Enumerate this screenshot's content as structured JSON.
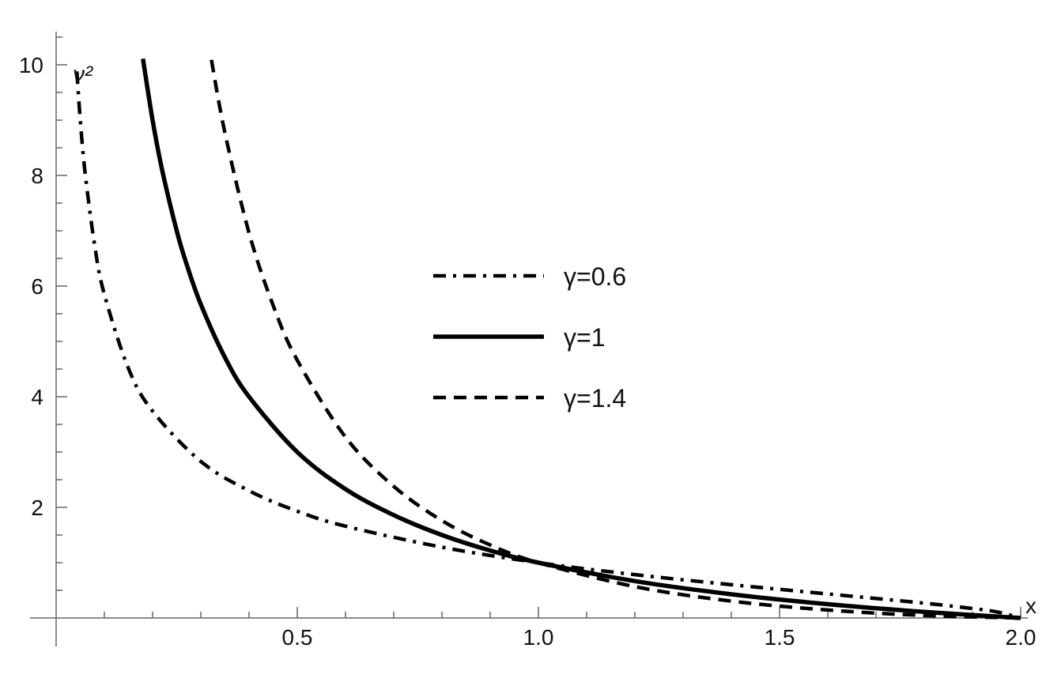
{
  "chart_data": {
    "type": "line",
    "title": "",
    "xlabel": "x",
    "ylabel": "ν²",
    "xlim": [
      0,
      2.0
    ],
    "ylim": [
      0,
      10.6
    ],
    "x_ticks": [
      "0.5",
      "1.0",
      "1.5",
      "2.0"
    ],
    "y_ticks": [
      "2",
      "4",
      "6",
      "8",
      "10"
    ],
    "x_tick_values": [
      0.5,
      1.0,
      1.5,
      2.0
    ],
    "y_tick_values": [
      2,
      4,
      6,
      8,
      10
    ],
    "grid": false,
    "legend_position": "center",
    "series": [
      {
        "name": "γ=0.6",
        "style": "dash-dot",
        "x": [
          0.043,
          0.05,
          0.06,
          0.08,
          0.1,
          0.15,
          0.2,
          0.3,
          0.4,
          0.5,
          0.6,
          0.8,
          1.0,
          1.2,
          1.4,
          1.6,
          1.8,
          1.9,
          1.95,
          2.0
        ],
        "y": [
          9.88,
          9.01,
          8.05,
          6.73,
          5.85,
          4.51,
          3.74,
          2.83,
          2.3,
          1.93,
          1.66,
          1.28,
          1.0,
          0.784,
          0.602,
          0.435,
          0.268,
          0.171,
          0.111,
          0.0
        ]
      },
      {
        "name": "γ=1",
        "style": "solid",
        "x": [
          0.18,
          0.2,
          0.22,
          0.25,
          0.27,
          0.3,
          0.35,
          0.4,
          0.5,
          0.6,
          0.7,
          0.8,
          0.9,
          1.0,
          1.2,
          1.4,
          1.6,
          1.8,
          2.0
        ],
        "y": [
          10.11,
          9.0,
          8.09,
          7.0,
          6.41,
          5.67,
          4.71,
          4.0,
          3.0,
          2.33,
          1.86,
          1.5,
          1.22,
          1.0,
          0.667,
          0.429,
          0.25,
          0.111,
          0.0
        ]
      },
      {
        "name": "γ=1.4",
        "style": "dashed",
        "x": [
          0.322,
          0.35,
          0.4,
          0.45,
          0.5,
          0.6,
          0.7,
          0.8,
          0.9,
          1.0,
          1.2,
          1.4,
          1.6,
          1.8,
          2.0
        ],
        "y": [
          10.09,
          8.77,
          6.96,
          5.65,
          4.66,
          3.27,
          2.38,
          1.76,
          1.32,
          1.0,
          0.567,
          0.305,
          0.144,
          0.046,
          0.0
        ]
      }
    ]
  }
}
